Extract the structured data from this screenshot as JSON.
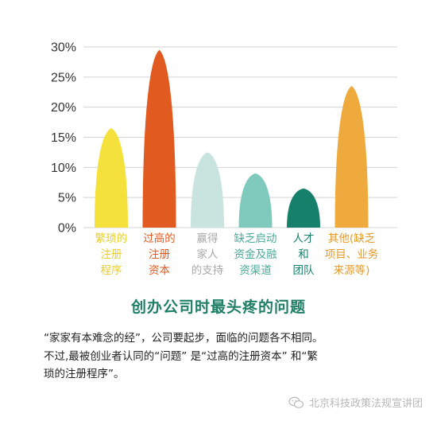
{
  "chart_data": {
    "type": "bar",
    "title": "创办公司时最头疼的问题",
    "ylim": [
      0,
      30
    ],
    "yticks": [
      "0%",
      "5%",
      "10%",
      "15%",
      "20%",
      "25%",
      "30%"
    ],
    "grid": true,
    "categories": [
      [
        "繁琐的",
        "注册",
        "程序"
      ],
      [
        "过高的",
        "注册",
        "资本"
      ],
      [
        "赢得",
        "家人",
        "的支持"
      ],
      [
        "缺乏启动",
        "资金及融",
        "资渠道"
      ],
      [
        "人才",
        "和",
        "团队"
      ],
      [
        "其他(缺乏",
        "项目、业务",
        "来源等)"
      ]
    ],
    "values": [
      16.5,
      29.5,
      12.5,
      9,
      6.5,
      23.5
    ],
    "colors": [
      "#f4e13c",
      "#e15a1f",
      "#c9e4df",
      "#7fc9bd",
      "#17806a",
      "#efaa3d"
    ],
    "label_colors": [
      "#e8cf2b",
      "#e15a1f",
      "#a8a8a8",
      "#4aa99a",
      "#17806a",
      "#e39a2b"
    ]
  },
  "paragraph": [
    "“家家有本难念的经”，公司要起步，面临的问题各不相同。",
    "不过,最被创业者认同的“问题” 是“过高的注册资本” 和“繁",
    "琐的注册程序”。"
  ],
  "watermark": "北京科技政策法规宣讲团"
}
